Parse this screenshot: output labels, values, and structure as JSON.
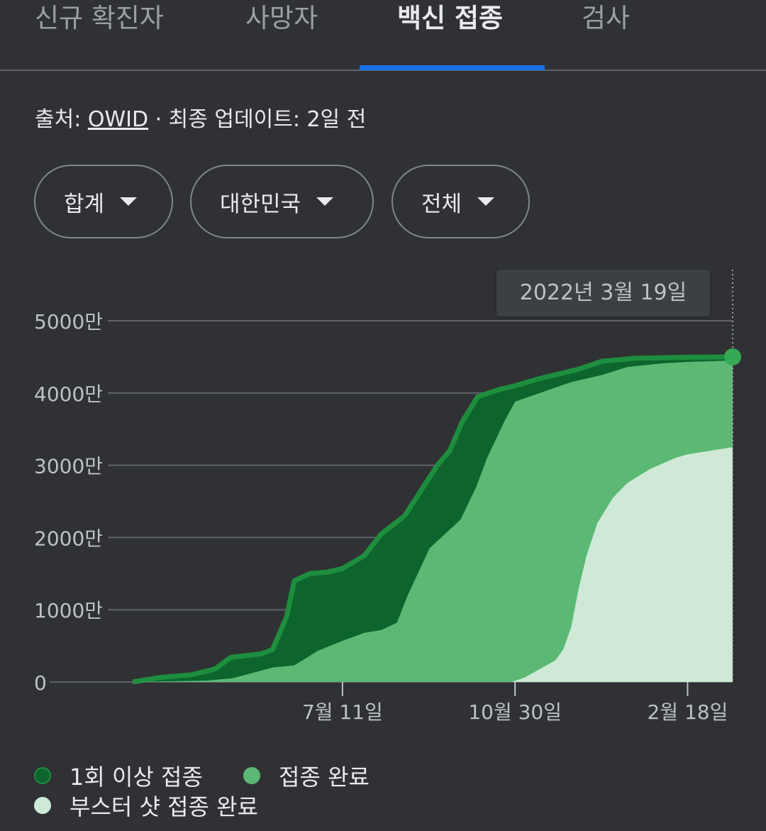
{
  "tabs": [
    {
      "label": "신규 확진자"
    },
    {
      "label": "사망자"
    },
    {
      "label": "백신 접종"
    },
    {
      "label": "검사"
    }
  ],
  "source": {
    "prefix": "출처: ",
    "link": "OWID",
    "suffix": " · 최종 업데이트: 2일 전"
  },
  "filters": [
    {
      "label": "합계"
    },
    {
      "label": "대한민국"
    },
    {
      "label": "전체"
    }
  ],
  "tooltip": {
    "date": "2022년 3월 19일"
  },
  "colors": {
    "first_dose": "#0d652d",
    "first_dose_edge": "#1e8e3e",
    "fully_vaccinated": "#5bb974",
    "booster": "#ceead6",
    "grid": "#5f6368",
    "axis_text": "#bdc1c6",
    "highlight_dot": "#34a853"
  },
  "chart_data": {
    "type": "area",
    "x_domain": [
      "2021-02-26",
      "2022-03-19"
    ],
    "ylim": [
      0,
      50000000
    ],
    "y_ticks": [
      {
        "value": 0,
        "label": "0"
      },
      {
        "value": 10000000,
        "label": "1000만"
      },
      {
        "value": 20000000,
        "label": "2000만"
      },
      {
        "value": 30000000,
        "label": "3000만"
      },
      {
        "value": 40000000,
        "label": "4000만"
      },
      {
        "value": 50000000,
        "label": "5000만"
      }
    ],
    "x_ticks": [
      {
        "date": "2021-07-11",
        "label": "7월 11일"
      },
      {
        "date": "2021-10-30",
        "label": "10월 30일"
      },
      {
        "date": "2022-02-18",
        "label": "2월 18일"
      }
    ],
    "grid": true,
    "legend_position": "bottom",
    "highlight": {
      "date": "2022-03-19",
      "label": "2022년 3월 19일"
    },
    "series": [
      {
        "name": "1회 이상 접종",
        "points": [
          [
            "2021-02-26",
            0
          ],
          [
            "2021-03-15",
            600000
          ],
          [
            "2021-04-05",
            1000000
          ],
          [
            "2021-04-20",
            1800000
          ],
          [
            "2021-04-30",
            3400000
          ],
          [
            "2021-05-20",
            3900000
          ],
          [
            "2021-05-27",
            4500000
          ],
          [
            "2021-06-05",
            9000000
          ],
          [
            "2021-06-10",
            14000000
          ],
          [
            "2021-06-20",
            15000000
          ],
          [
            "2021-07-01",
            15200000
          ],
          [
            "2021-07-11",
            15700000
          ],
          [
            "2021-07-25",
            17500000
          ],
          [
            "2021-08-05",
            20500000
          ],
          [
            "2021-08-20",
            23000000
          ],
          [
            "2021-08-29",
            26000000
          ],
          [
            "2021-09-10",
            30000000
          ],
          [
            "2021-09-18",
            32000000
          ],
          [
            "2021-09-26",
            36000000
          ],
          [
            "2021-10-06",
            39500000
          ],
          [
            "2021-10-20",
            40500000
          ],
          [
            "2021-10-30",
            41000000
          ],
          [
            "2021-11-15",
            42000000
          ],
          [
            "2021-12-10",
            43300000
          ],
          [
            "2021-12-25",
            44400000
          ],
          [
            "2022-01-15",
            44800000
          ],
          [
            "2022-02-18",
            44950000
          ],
          [
            "2022-03-19",
            45000000
          ]
        ]
      },
      {
        "name": "접종 완료",
        "points": [
          [
            "2021-02-26",
            0
          ],
          [
            "2021-04-15",
            200000
          ],
          [
            "2021-05-01",
            500000
          ],
          [
            "2021-05-15",
            1300000
          ],
          [
            "2021-05-27",
            2000000
          ],
          [
            "2021-06-10",
            2300000
          ],
          [
            "2021-06-25",
            4300000
          ],
          [
            "2021-07-11",
            5700000
          ],
          [
            "2021-07-25",
            6800000
          ],
          [
            "2021-08-05",
            7200000
          ],
          [
            "2021-08-15",
            8200000
          ],
          [
            "2021-08-22",
            12000000
          ],
          [
            "2021-09-05",
            18500000
          ],
          [
            "2021-09-25",
            22500000
          ],
          [
            "2021-10-05",
            27000000
          ],
          [
            "2021-10-12",
            31000000
          ],
          [
            "2021-10-23",
            36000000
          ],
          [
            "2021-10-30",
            38800000
          ],
          [
            "2021-11-15",
            40000000
          ],
          [
            "2021-12-05",
            41500000
          ],
          [
            "2021-12-25",
            42500000
          ],
          [
            "2022-01-10",
            43600000
          ],
          [
            "2022-02-01",
            44100000
          ],
          [
            "2022-02-18",
            44300000
          ],
          [
            "2022-03-19",
            44500000
          ]
        ]
      },
      {
        "name": "부스터 샷 접종 완료",
        "points": [
          [
            "2021-02-26",
            0
          ],
          [
            "2021-10-28",
            0
          ],
          [
            "2021-11-05",
            600000
          ],
          [
            "2021-11-15",
            1800000
          ],
          [
            "2021-11-25",
            3000000
          ],
          [
            "2021-11-30",
            4500000
          ],
          [
            "2021-12-05",
            7500000
          ],
          [
            "2021-12-10",
            13000000
          ],
          [
            "2021-12-15",
            17500000
          ],
          [
            "2021-12-22",
            22000000
          ],
          [
            "2022-01-01",
            25500000
          ],
          [
            "2022-01-10",
            27500000
          ],
          [
            "2022-01-25",
            29500000
          ],
          [
            "2022-02-10",
            31000000
          ],
          [
            "2022-02-18",
            31500000
          ],
          [
            "2022-03-19",
            32500000
          ]
        ]
      }
    ]
  }
}
